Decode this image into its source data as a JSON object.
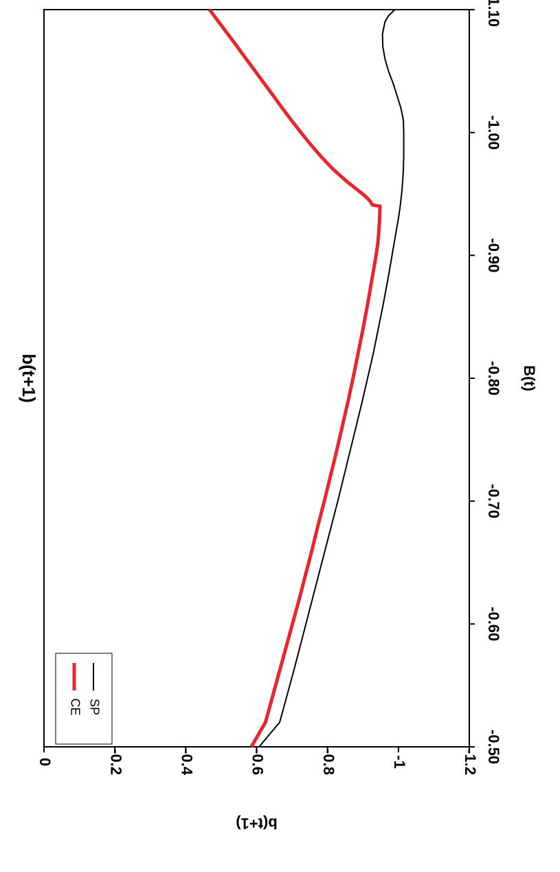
{
  "chart_data": {
    "type": "line",
    "title": "b(t+1)",
    "xlabel": "B(t)",
    "ylabel": "b(t+1)",
    "xlim": [
      -1.1,
      -0.5
    ],
    "ylim": [
      -1.2,
      0
    ],
    "x_ticks": [
      -1.1,
      -1.0,
      -0.9,
      -0.8,
      -0.7,
      -0.6,
      -0.5
    ],
    "x_tick_labels": [
      "-1.10",
      "-1.00",
      "-0.90",
      "-0.80",
      "-0.70",
      "-0.60",
      "-0.50"
    ],
    "y_ticks": [
      0,
      -0.2,
      -0.4,
      -0.6,
      -0.8,
      -1,
      -1.2
    ],
    "y_tick_labels": [
      "0",
      "-0.2",
      "-0.4",
      "-0.6",
      "-0.8",
      "-1",
      "-1.2"
    ],
    "orientation": "rotated 180 degrees",
    "grid": false,
    "legend_position": "bottom-left",
    "series": [
      {
        "name": "SP",
        "color": "#000000",
        "x": [
          -1.1,
          -1.095,
          -1.09,
          -1.08,
          -1.07,
          -1.06,
          -1.05,
          -1.04,
          -1.03,
          -1.02,
          -1.01,
          -1.0,
          -0.99,
          -0.98,
          -0.97,
          -0.96,
          -0.95,
          -0.94,
          -0.93,
          -0.92,
          -0.91,
          -0.9,
          -0.88,
          -0.86,
          -0.84,
          -0.82,
          -0.8,
          -0.78,
          -0.76,
          -0.74,
          -0.72,
          -0.7,
          -0.68,
          -0.66,
          -0.64,
          -0.62,
          -0.6,
          -0.58,
          -0.56,
          -0.54,
          -0.52,
          -0.5
        ],
        "y": [
          -0.99,
          -0.972,
          -0.962,
          -0.955,
          -0.956,
          -0.962,
          -0.972,
          -0.985,
          -0.996,
          -1.007,
          -1.014,
          -1.015,
          -1.015,
          -1.015,
          -1.014,
          -1.012,
          -1.009,
          -1.005,
          -1.0,
          -0.994,
          -0.988,
          -0.982,
          -0.97,
          -0.957,
          -0.943,
          -0.929,
          -0.913,
          -0.897,
          -0.88,
          -0.863,
          -0.846,
          -0.829,
          -0.811,
          -0.793,
          -0.775,
          -0.757,
          -0.739,
          -0.721,
          -0.703,
          -0.684,
          -0.665,
          -0.607
        ]
      },
      {
        "name": "CE",
        "color": "#e8262b",
        "x": [
          -1.1,
          -1.09,
          -1.08,
          -1.07,
          -1.06,
          -1.05,
          -1.04,
          -1.03,
          -1.02,
          -1.01,
          -1.0,
          -0.99,
          -0.98,
          -0.97,
          -0.96,
          -0.955,
          -0.95,
          -0.948,
          -0.946,
          -0.944,
          -0.942,
          -0.941,
          -0.94,
          -0.93,
          -0.92,
          -0.91,
          -0.9,
          -0.88,
          -0.86,
          -0.84,
          -0.82,
          -0.8,
          -0.78,
          -0.76,
          -0.74,
          -0.72,
          -0.7,
          -0.68,
          -0.66,
          -0.64,
          -0.62,
          -0.6,
          -0.58,
          -0.56,
          -0.54,
          -0.52,
          -0.5
        ],
        "y": [
          -0.467,
          -0.493,
          -0.519,
          -0.545,
          -0.57,
          -0.596,
          -0.621,
          -0.647,
          -0.672,
          -0.698,
          -0.725,
          -0.753,
          -0.783,
          -0.816,
          -0.855,
          -0.877,
          -0.899,
          -0.907,
          -0.914,
          -0.92,
          -0.925,
          -0.927,
          -0.948,
          -0.947,
          -0.945,
          -0.942,
          -0.937,
          -0.925,
          -0.913,
          -0.9,
          -0.886,
          -0.872,
          -0.857,
          -0.841,
          -0.825,
          -0.808,
          -0.791,
          -0.773,
          -0.756,
          -0.738,
          -0.72,
          -0.701,
          -0.682,
          -0.663,
          -0.644,
          -0.625,
          -0.585
        ]
      }
    ]
  }
}
